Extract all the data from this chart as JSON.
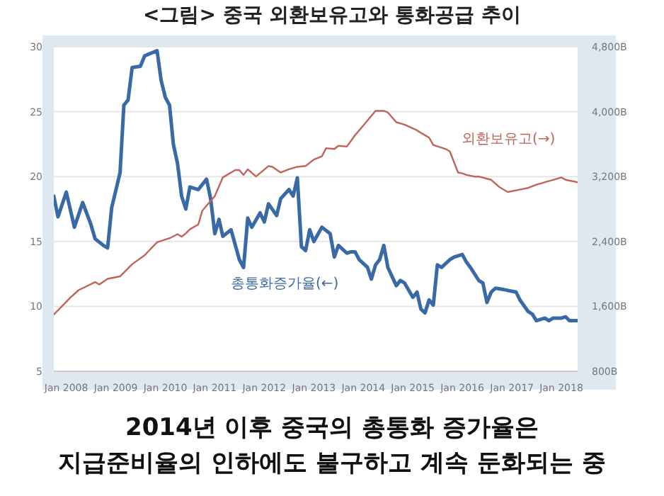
{
  "chart_data": {
    "type": "line",
    "title": "<그림> 중국 외환보유고와 통화공급 추이",
    "annotations": [
      "2014년 이후 중국의 총통화 증가율은",
      "지급준비율의 인하에도 불구하고 계속 둔화되는 중"
    ],
    "series": [
      {
        "name": "총통화증가율(←)",
        "color": "#3a6aa5",
        "x": [
          "2007-10",
          "2007-11",
          "2008-01",
          "2008-03",
          "2008-05",
          "2008-07",
          "2008-08",
          "2008-10",
          "2008-11",
          "2008-12",
          "2009-02",
          "2009-03",
          "2009-04",
          "2009-05",
          "2009-07",
          "2009-08",
          "2009-11",
          "2009-12",
          "2010-01",
          "2010-02",
          "2010-03",
          "2010-04",
          "2010-05",
          "2010-06",
          "2010-07",
          "2010-09",
          "2010-11",
          "2010-12",
          "2011-01",
          "2011-02",
          "2011-03",
          "2011-05",
          "2011-07",
          "2011-08",
          "2011-09",
          "2011-10",
          "2011-12",
          "2012-01",
          "2012-02",
          "2012-04",
          "2012-05",
          "2012-07",
          "2012-08",
          "2012-09",
          "2012-10",
          "2012-11",
          "2012-12",
          "2013-01",
          "2013-03",
          "2013-05",
          "2013-06",
          "2013-07",
          "2013-09",
          "2013-10",
          "2013-11",
          "2013-12",
          "2014-02",
          "2014-03",
          "2014-04",
          "2014-05",
          "2014-06",
          "2014-07",
          "2014-09",
          "2014-10",
          "2014-11",
          "2015-01",
          "2015-02",
          "2015-03",
          "2015-04",
          "2015-05",
          "2015-06",
          "2015-07",
          "2015-08",
          "2015-10",
          "2015-11",
          "2016-01",
          "2016-02",
          "2016-03",
          "2016-05",
          "2016-06",
          "2016-07",
          "2016-08",
          "2016-09",
          "2016-11",
          "2017-02",
          "2017-03",
          "2017-05",
          "2017-06",
          "2017-07",
          "2017-09",
          "2017-10",
          "2017-11",
          "2018-01",
          "2018-02",
          "2018-03",
          "2018-05"
        ],
        "values": [
          18.5,
          16.9,
          18.8,
          16.1,
          18.0,
          16.3,
          15.2,
          14.7,
          14.5,
          17.6,
          20.3,
          25.5,
          25.9,
          28.4,
          28.5,
          29.3,
          29.7,
          27.4,
          26.1,
          25.5,
          22.5,
          21.0,
          18.5,
          17.5,
          19.2,
          19.0,
          19.8,
          18.3,
          15.6,
          16.7,
          15.4,
          15.9,
          13.6,
          13.0,
          16.8,
          16.1,
          17.2,
          16.5,
          17.9,
          17.0,
          18.3,
          19.0,
          18.5,
          19.9,
          14.6,
          14.3,
          15.9,
          15.0,
          16.1,
          15.6,
          13.8,
          14.7,
          14.1,
          14.2,
          14.2,
          13.6,
          13.0,
          12.1,
          13.2,
          13.6,
          14.7,
          13.0,
          11.6,
          12.0,
          11.8,
          10.7,
          11.1,
          9.8,
          9.5,
          10.5,
          10.1,
          13.2,
          13.0,
          13.6,
          13.8,
          14.0,
          13.4,
          13.0,
          12.0,
          11.8,
          10.3,
          11.1,
          11.4,
          11.3,
          11.1,
          10.5,
          9.6,
          9.4,
          8.9,
          9.1,
          8.9,
          9.1,
          9.1,
          9.2,
          8.9,
          8.9
        ]
      },
      {
        "name": "외환보유고(→)",
        "color": "#c0645a",
        "axis": "y2",
        "x": [
          "2007-10",
          "2008-02",
          "2008-04",
          "2008-08",
          "2008-09",
          "2008-11",
          "2009-02",
          "2009-05",
          "2009-08",
          "2009-11",
          "2010-02",
          "2010-04",
          "2010-05",
          "2010-06",
          "2010-07",
          "2010-09",
          "2010-10",
          "2011-01",
          "2011-03",
          "2011-06",
          "2011-07",
          "2011-08",
          "2011-09",
          "2011-11",
          "2012-02",
          "2012-03",
          "2012-05",
          "2012-07",
          "2012-09",
          "2012-11",
          "2013-01",
          "2013-03",
          "2013-04",
          "2013-06",
          "2013-07",
          "2013-09",
          "2013-11",
          "2014-01",
          "2014-04",
          "2014-06",
          "2014-07",
          "2014-09",
          "2014-11",
          "2015-02",
          "2015-03",
          "2015-05",
          "2015-06",
          "2015-09",
          "2015-10",
          "2015-12",
          "2016-01",
          "2016-02",
          "2016-04",
          "2016-05",
          "2016-08",
          "2016-10",
          "2016-12",
          "2017-02",
          "2017-05",
          "2017-07",
          "2017-09",
          "2017-11",
          "2018-01",
          "2018-02",
          "2018-05"
        ],
        "values": [
          1500,
          1710,
          1800,
          1900,
          1870,
          1940,
          1970,
          2120,
          2230,
          2390,
          2440,
          2490,
          2460,
          2500,
          2550,
          2610,
          2780,
          2960,
          3190,
          3280,
          3280,
          3220,
          3290,
          3200,
          3330,
          3320,
          3250,
          3290,
          3320,
          3330,
          3410,
          3450,
          3550,
          3540,
          3580,
          3570,
          3710,
          3830,
          4010,
          4010,
          3990,
          3870,
          3840,
          3770,
          3740,
          3680,
          3590,
          3540,
          3510,
          3250,
          3240,
          3220,
          3200,
          3200,
          3160,
          3070,
          3010,
          3030,
          3060,
          3100,
          3130,
          3160,
          3190,
          3160,
          3130
        ]
      }
    ],
    "xlim": [
      "2007-10",
      "2018-05"
    ],
    "xticks": [
      {
        "value": "2008-01",
        "label": "Jan 2008"
      },
      {
        "value": "2009-01",
        "label": "Jan 2009"
      },
      {
        "value": "2010-01",
        "label": "Jan 2010"
      },
      {
        "value": "2011-01",
        "label": "Jan 2011"
      },
      {
        "value": "2012-01",
        "label": "Jan 2012"
      },
      {
        "value": "2013-01",
        "label": "Jan 2013"
      },
      {
        "value": "2014-01",
        "label": "Jan 2014"
      },
      {
        "value": "2015-01",
        "label": "Jan 2015"
      },
      {
        "value": "2016-01",
        "label": "Jan 2016"
      },
      {
        "value": "2017-01",
        "label": "Jan 2017"
      },
      {
        "value": "2018-01",
        "label": "Jan 2018"
      }
    ],
    "ylim": [
      5,
      30
    ],
    "yticks": [
      5,
      10,
      15,
      20,
      25,
      30
    ],
    "y2lim": [
      800,
      4800
    ],
    "y2ticks": [
      {
        "value": 800,
        "label": "800B"
      },
      {
        "value": 1600,
        "label": "1,600B"
      },
      {
        "value": 2400,
        "label": "2,400B"
      },
      {
        "value": 3200,
        "label": "3,200B"
      },
      {
        "value": 4000,
        "label": "4,000B"
      },
      {
        "value": 4800,
        "label": "4,800B"
      }
    ],
    "grid": "y",
    "legend": false,
    "marker": "none",
    "line_style": "solid"
  }
}
